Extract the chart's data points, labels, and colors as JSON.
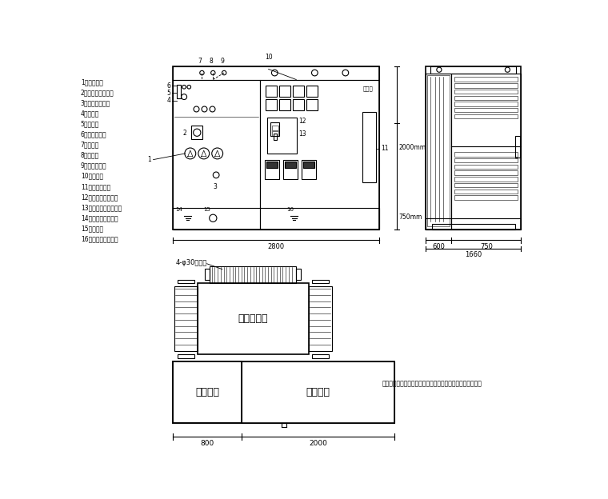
{
  "bg_color": "#ffffff",
  "line_color": "#000000",
  "lw": 0.8,
  "tlw": 0.4,
  "klw": 1.2,
  "legend_items": [
    "1、高压套管",
    "2、四位置负荷开关",
    "3、调压分接开关",
    "4、油位计",
    "5、注油口",
    "6、压力释放阀",
    "7、温度计",
    "8、压力表",
    "9、低频保护器",
    "10、表计室",
    "11、无功补偿室",
    "12、低压侧主断路器",
    "13、低压侧总线断路器",
    "14、高压室接地端子",
    "15、底盘阀",
    "16、低压室接地端子"
  ],
  "note_text": "说明：以上尺寸仅供作为参考，最终尺寸以厂家产品实物为准",
  "dim_front": "2800",
  "dim_side_h": "2000mm",
  "dim_side_sub": "750mm",
  "dim_600": "600",
  "dim_750": "750",
  "dim_1660": "1660",
  "transformer_label": "变压器主体",
  "hv_label": "高压间隔",
  "lv_label": "低压间隔",
  "bolt_label": "4-φ30安装孔",
  "dim_hv": "800",
  "dim_lv": "2000",
  "elec_label": "电平量"
}
